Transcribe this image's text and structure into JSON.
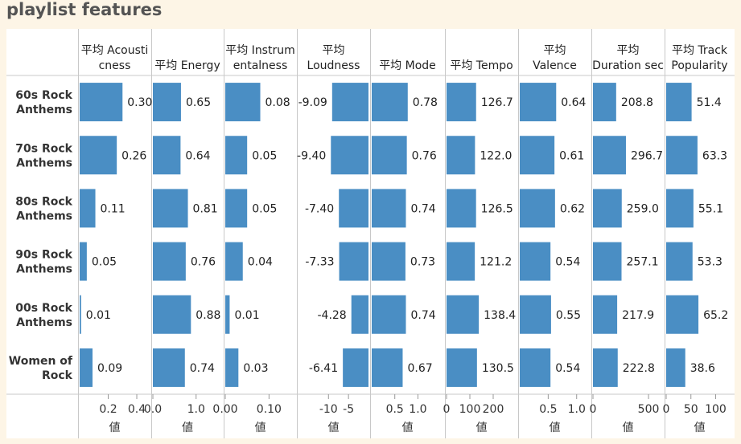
{
  "title": "playlist features",
  "colors": {
    "bar": "#4a8ec4",
    "grid": "#d9d9d9",
    "divider": "#c8c8c8",
    "text": "#222222",
    "axis_text": "#333333",
    "background": "#fdf5e6"
  },
  "chart_data": {
    "type": "bar",
    "orientation": "horizontal",
    "title": "playlist features",
    "rows": [
      "60s Rock Anthems",
      "70s Rock Anthems",
      "80s Rock Anthems",
      "90s Rock Anthems",
      "00s Rock Anthems",
      "Women of Rock"
    ],
    "row_label_lines": [
      [
        "60s Rock",
        "Anthems"
      ],
      [
        "70s Rock",
        "Anthems"
      ],
      [
        "80s Rock",
        "Anthems"
      ],
      [
        "90s Rock",
        "Anthems"
      ],
      [
        "00s Rock",
        "Anthems"
      ],
      [
        "Women of",
        "Rock"
      ]
    ],
    "xlabel": "値",
    "grid": false,
    "series": [
      {
        "header": [
          "平均 Acousti",
          "cness"
        ],
        "values": [
          0.3,
          0.26,
          0.11,
          0.05,
          0.01,
          0.09
        ],
        "labels": [
          "0.30",
          "0.26",
          "0.11",
          "0.05",
          "0.01",
          "0.09"
        ],
        "xlim": [
          0,
          0.49
        ],
        "ticks": [
          0.2,
          0.4
        ],
        "tick_labels": [
          "0.2",
          "0.4"
        ]
      },
      {
        "header": [
          "平均 Energy"
        ],
        "values": [
          0.65,
          0.64,
          0.81,
          0.76,
          0.88,
          0.74
        ],
        "labels": [
          "0.65",
          "0.64",
          "0.81",
          "0.76",
          "0.88",
          "0.74"
        ],
        "xlim": [
          0,
          1.6
        ],
        "ticks": [
          0.0,
          1.0
        ],
        "tick_labels": [
          "0.0",
          "1.0"
        ]
      },
      {
        "header": [
          "平均 Instrum",
          "entalness"
        ],
        "values": [
          0.08,
          0.05,
          0.05,
          0.04,
          0.01,
          0.03
        ],
        "labels": [
          "0.08",
          "0.05",
          "0.05",
          "0.04",
          "0.01",
          "0.03"
        ],
        "xlim": [
          0,
          0.16
        ],
        "ticks": [
          0.0,
          0.1
        ],
        "tick_labels": [
          "0.00",
          "0.10"
        ]
      },
      {
        "header": [
          "平均",
          "Loudness"
        ],
        "values": [
          -9.09,
          -9.4,
          -7.4,
          -7.33,
          -4.28,
          -6.41
        ],
        "labels": [
          "-9.09",
          "-9.40",
          "-7.40",
          "-7.33",
          "-4.28",
          "-6.41"
        ],
        "xlim": [
          -17.5,
          0
        ],
        "ticks": [
          -10,
          -5
        ],
        "tick_labels": [
          "-10",
          "-5"
        ]
      },
      {
        "header": [
          "平均 Mode"
        ],
        "values": [
          0.78,
          0.76,
          0.74,
          0.73,
          0.74,
          0.67
        ],
        "labels": [
          "0.78",
          "0.76",
          "0.74",
          "0.73",
          "0.74",
          "0.67"
        ],
        "xlim": [
          0,
          1.55
        ],
        "ticks": [
          0.5,
          1.0
        ],
        "tick_labels": [
          "0.5",
          "1.0"
        ]
      },
      {
        "header": [
          "平均 Tempo"
        ],
        "values": [
          126.7,
          122.0,
          126.5,
          121.2,
          138.4,
          130.5
        ],
        "labels": [
          "126.7",
          "122.0",
          "126.5",
          "121.2",
          "138.4",
          "130.5"
        ],
        "xlim": [
          0,
          300
        ],
        "ticks": [
          0,
          100,
          200
        ],
        "tick_labels": [
          "0",
          "100",
          "200"
        ]
      },
      {
        "header": [
          "平均",
          "Valence"
        ],
        "values": [
          0.64,
          0.61,
          0.62,
          0.54,
          0.55,
          0.54
        ],
        "labels": [
          "0.64",
          "0.61",
          "0.62",
          "0.54",
          "0.55",
          "0.54"
        ],
        "xlim": [
          0,
          1.23
        ],
        "ticks": [
          0.5,
          1.0
        ],
        "tick_labels": [
          "0.5",
          "1.0"
        ]
      },
      {
        "header": [
          "平均",
          "Duration sec"
        ],
        "values": [
          208.8,
          296.7,
          259.0,
          257.1,
          217.9,
          222.8
        ],
        "labels": [
          "208.8",
          "296.7",
          "259.0",
          "257.1",
          "217.9",
          "222.8"
        ],
        "xlim": [
          0,
          630
        ],
        "ticks": [
          0,
          500
        ],
        "tick_labels": [
          "0",
          "500"
        ]
      },
      {
        "header": [
          "平均 Track",
          "Popularity"
        ],
        "values": [
          51.4,
          63.3,
          55.1,
          53.3,
          65.2,
          38.6
        ],
        "labels": [
          "51.4",
          "63.3",
          "55.1",
          "53.3",
          "65.2",
          "38.6"
        ],
        "xlim": [
          0,
          135
        ],
        "ticks": [
          0,
          50,
          100
        ],
        "tick_labels": [
          "0",
          "50",
          "100"
        ]
      }
    ]
  }
}
